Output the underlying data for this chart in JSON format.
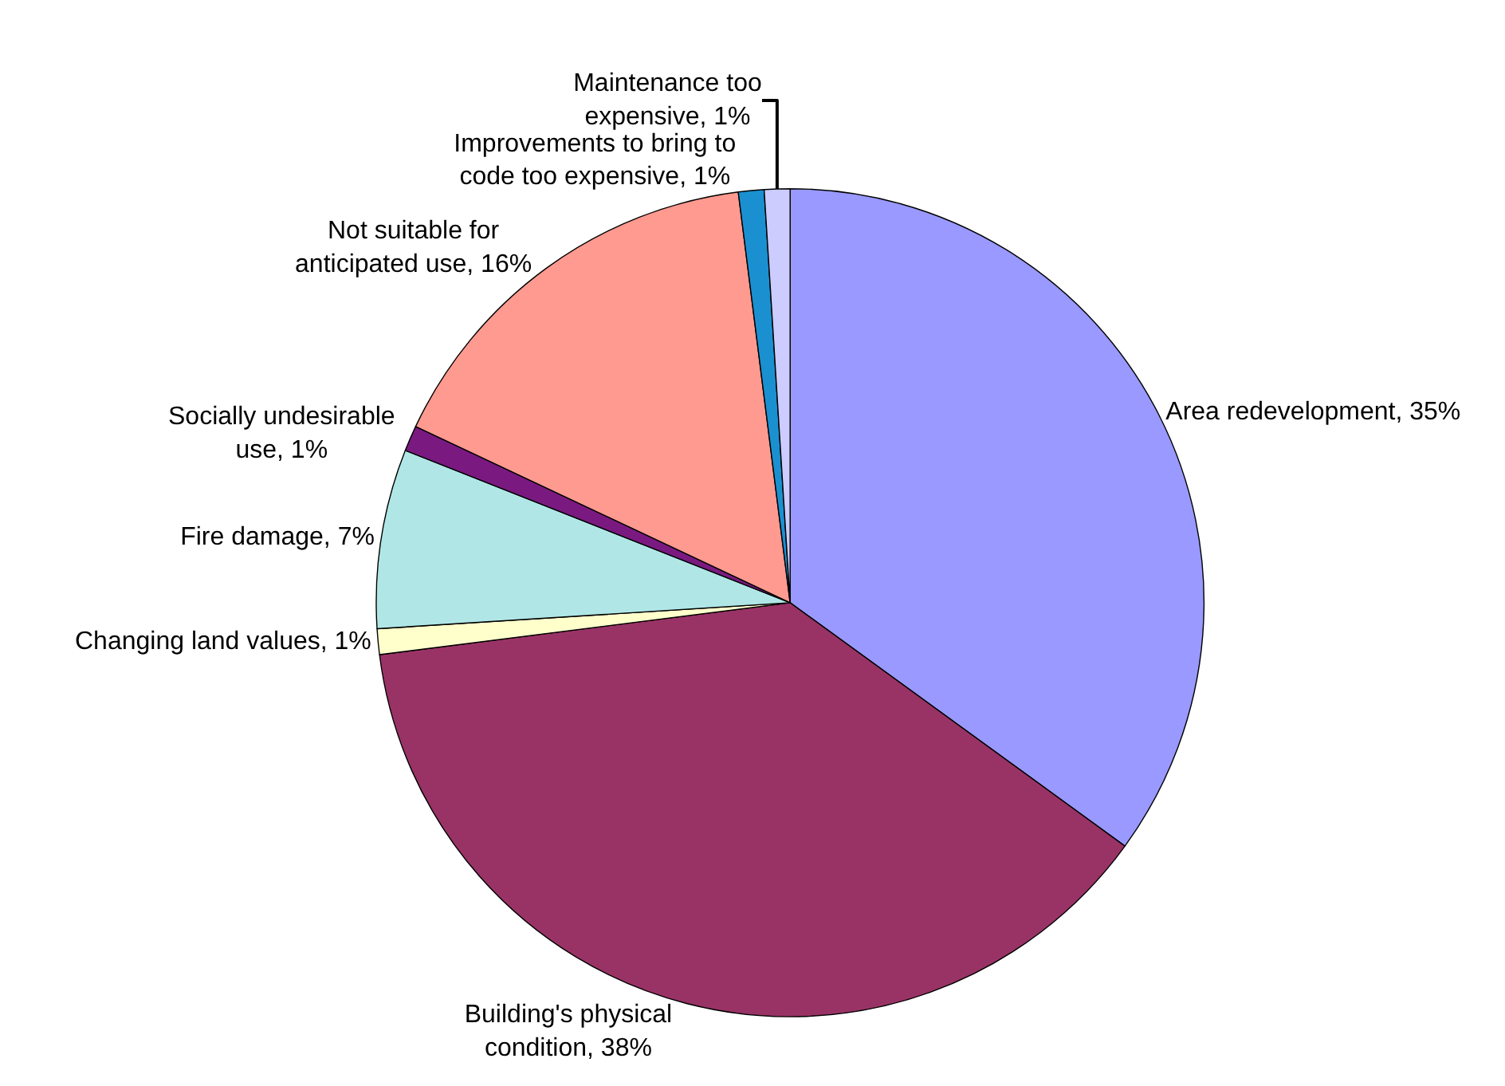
{
  "chart_data": {
    "type": "pie",
    "categories": [
      "Area redevelopment",
      "Building's physical condition",
      "Changing land values",
      "Fire damage",
      "Socially undesirable use",
      "Not suitable for anticipated use",
      "Improvements to bring to code too expensive",
      "Maintenance too expensive"
    ],
    "values": [
      35,
      38,
      1,
      7,
      1,
      16,
      1,
      1
    ],
    "value_labels": [
      "35%",
      "38%",
      "1%",
      "7%",
      "1%",
      "16%",
      "1%",
      "1%"
    ],
    "colors": [
      "#9999ff",
      "#993366",
      "#ffffcc",
      "#b0e6e6",
      "#7a1a80",
      "#ff9a90",
      "#1a90d0",
      "#ccccff"
    ],
    "legend": false
  }
}
